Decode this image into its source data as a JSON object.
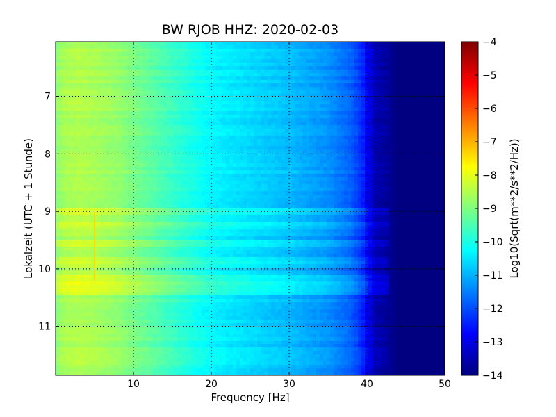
{
  "chart_data": {
    "type": "heatmap",
    "title": "BW RJOB HHZ: 2020-02-03",
    "xlabel": "Frequency [Hz]",
    "ylabel": "Lokalzeit (UTC + 1 Stunde)",
    "colorbar_label": "Log10(Sqrt(m**2/s**2/Hz))",
    "xlim": [
      0,
      50
    ],
    "ylim": [
      11.85,
      6.05
    ],
    "x_ticks": [
      10,
      20,
      30,
      40,
      50
    ],
    "y_ticks": [
      7,
      8,
      9,
      10,
      11
    ],
    "x_tick_labels": [
      "10",
      "20",
      "30",
      "40",
      "50"
    ],
    "y_tick_labels": [
      "7",
      "8",
      "9",
      "10",
      "11"
    ],
    "colorbar_range": [
      -14,
      -4
    ],
    "colorbar_ticks": [
      -4,
      -5,
      -6,
      -7,
      -8,
      -9,
      -10,
      -11,
      -12,
      -13,
      -14
    ],
    "colorbar_tick_labels": [
      "−4",
      "−5",
      "−6",
      "−7",
      "−8",
      "−9",
      "−10",
      "−11",
      "−12",
      "−13",
      "−14"
    ],
    "colormap": "jet",
    "grid": true,
    "spectrum_profile": {
      "frequency_hz": [
        0,
        1,
        3,
        5,
        8,
        12,
        16,
        20,
        25,
        30,
        35,
        38,
        39.5,
        40.5,
        41,
        42,
        43,
        44,
        50
      ],
      "log_psd": [
        -8.9,
        -8.6,
        -8.5,
        -8.6,
        -8.8,
        -9.3,
        -9.8,
        -10.3,
        -10.6,
        -10.9,
        -11.3,
        -11.8,
        -12.4,
        -13.1,
        -13.5,
        -13.6,
        -13.8,
        -14.0,
        -14.0
      ]
    },
    "noisy_periods": [
      {
        "start_hour": 9.0,
        "end_hour": 9.05,
        "delta": 0.4
      },
      {
        "start_hour": 9.25,
        "end_hour": 9.3,
        "delta": 0.35
      },
      {
        "start_hour": 9.55,
        "end_hour": 9.6,
        "delta": 0.3
      },
      {
        "start_hour": 9.85,
        "end_hour": 9.95,
        "delta": 0.35
      },
      {
        "start_hour": 10.15,
        "end_hour": 10.3,
        "delta": 0.5
      },
      {
        "start_hour": 10.35,
        "end_hour": 10.45,
        "delta": 0.45
      }
    ],
    "narrowband_line_hz": 5,
    "narrowband_line_hours": [
      9.0,
      10.2
    ]
  }
}
